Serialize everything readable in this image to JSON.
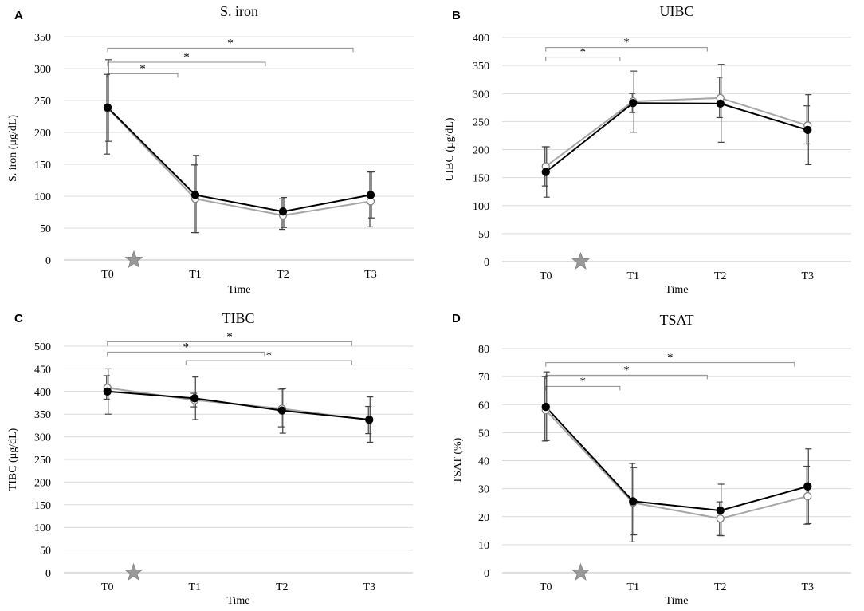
{
  "figure": {
    "background": "#ffffff"
  },
  "style": {
    "series_colors": [
      "#a6a6a6",
      "#000000"
    ],
    "marker_fills": [
      "#ffffff",
      "#000000"
    ],
    "treatment_star_color": "#999999"
  },
  "chart_data": [
    {
      "type": "line",
      "letter": "A",
      "title": "S. iron",
      "xlabel": "Time",
      "ylabel": "S. iron (μg/dL)",
      "categories": [
        "T0",
        "T1",
        "T2",
        "T3"
      ],
      "ylim": [
        0,
        350
      ],
      "ystep": 50,
      "series": [
        {
          "name": "series 1 (open)",
          "values": [
            238,
            96,
            70,
            92
          ],
          "err_low": [
            72,
            53,
            22,
            40
          ],
          "err_high": [
            53,
            53,
            26,
            46
          ]
        },
        {
          "name": "series 2 (filled)",
          "values": [
            239,
            102,
            76,
            102
          ],
          "err_low": [
            53,
            59,
            25,
            36
          ],
          "err_high": [
            75,
            62,
            22,
            36
          ]
        }
      ],
      "significance": [
        {
          "from": 0,
          "to": 0.8,
          "level": 292,
          "label": "*"
        },
        {
          "from": 0,
          "to": 1.8,
          "level": 310,
          "label": "*"
        },
        {
          "from": 0,
          "to": 2.8,
          "level": 332,
          "label": "*"
        }
      ],
      "treatment_marker_at": 0.3
    },
    {
      "type": "line",
      "letter": "B",
      "title": "UIBC",
      "xlabel": "Time",
      "ylabel": "UIBC (μg/dL)",
      "categories": [
        "T0",
        "T1",
        "T2",
        "T3"
      ],
      "ylim": [
        0,
        400
      ],
      "ystep": 50,
      "series": [
        {
          "name": "series 1 (open)",
          "values": [
            170,
            286,
            292,
            243
          ],
          "err_low": [
            35,
            20,
            35,
            33
          ],
          "err_high": [
            35,
            14,
            37,
            35
          ]
        },
        {
          "name": "series 2 (filled)",
          "values": [
            160,
            283,
            282,
            235
          ],
          "err_low": [
            45,
            52,
            69,
            62
          ],
          "err_high": [
            45,
            57,
            70,
            63
          ]
        }
      ],
      "significance": [
        {
          "from": 0,
          "to": 0.85,
          "level": 365,
          "label": "*"
        },
        {
          "from": 0,
          "to": 1.85,
          "level": 382,
          "label": "*"
        }
      ],
      "treatment_marker_at": 0.4
    },
    {
      "type": "line",
      "letter": "C",
      "title": "TIBC",
      "xlabel": "Time",
      "ylabel": "TIBC (μg/dL)",
      "categories": [
        "T0",
        "T1",
        "T2",
        "T3"
      ],
      "ylim": [
        0,
        500
      ],
      "ystep": 50,
      "series": [
        {
          "name": "series 1 (open)",
          "values": [
            408,
            381,
            362,
            337
          ],
          "err_low": [
            25,
            15,
            40,
            30
          ],
          "err_high": [
            27,
            15,
            43,
            30
          ]
        },
        {
          "name": "series 2 (filled)",
          "values": [
            400,
            385,
            358,
            338
          ],
          "err_low": [
            50,
            47,
            50,
            50
          ],
          "err_high": [
            50,
            47,
            48,
            50
          ]
        }
      ],
      "significance": [
        {
          "from": 0,
          "to": 1.8,
          "level": 487,
          "label": "*"
        },
        {
          "from": 0,
          "to": 2.8,
          "level": 510,
          "label": "*"
        },
        {
          "from": 0.9,
          "to": 2.8,
          "level": 468,
          "label": "*"
        }
      ],
      "treatment_marker_at": 0.3
    },
    {
      "type": "line",
      "letter": "D",
      "title": "TSAT",
      "xlabel": "Time",
      "ylabel": "TSAT (%)",
      "categories": [
        "T0",
        "T1",
        "T2",
        "T3"
      ],
      "ylim": [
        0,
        80
      ],
      "ystep": 10,
      "series": [
        {
          "name": "series 1 (open)",
          "values": [
            58,
            25,
            19.3,
            27.3
          ],
          "err_low": [
            11,
            14,
            6,
            10
          ],
          "err_high": [
            12,
            14,
            6,
            10.7
          ]
        },
        {
          "name": "series 2 (filled)",
          "values": [
            59.2,
            25.5,
            22.2,
            30.8
          ],
          "err_low": [
            12,
            12,
            9,
            13.3
          ],
          "err_high": [
            12.5,
            12,
            9.4,
            13.4
          ]
        }
      ],
      "significance": [
        {
          "from": 0,
          "to": 0.85,
          "level": 66.5,
          "label": "*"
        },
        {
          "from": 0,
          "to": 1.85,
          "level": 70.5,
          "label": "*"
        },
        {
          "from": 0,
          "to": 2.85,
          "level": 75,
          "label": "*"
        }
      ],
      "treatment_marker_at": 0.4
    }
  ]
}
